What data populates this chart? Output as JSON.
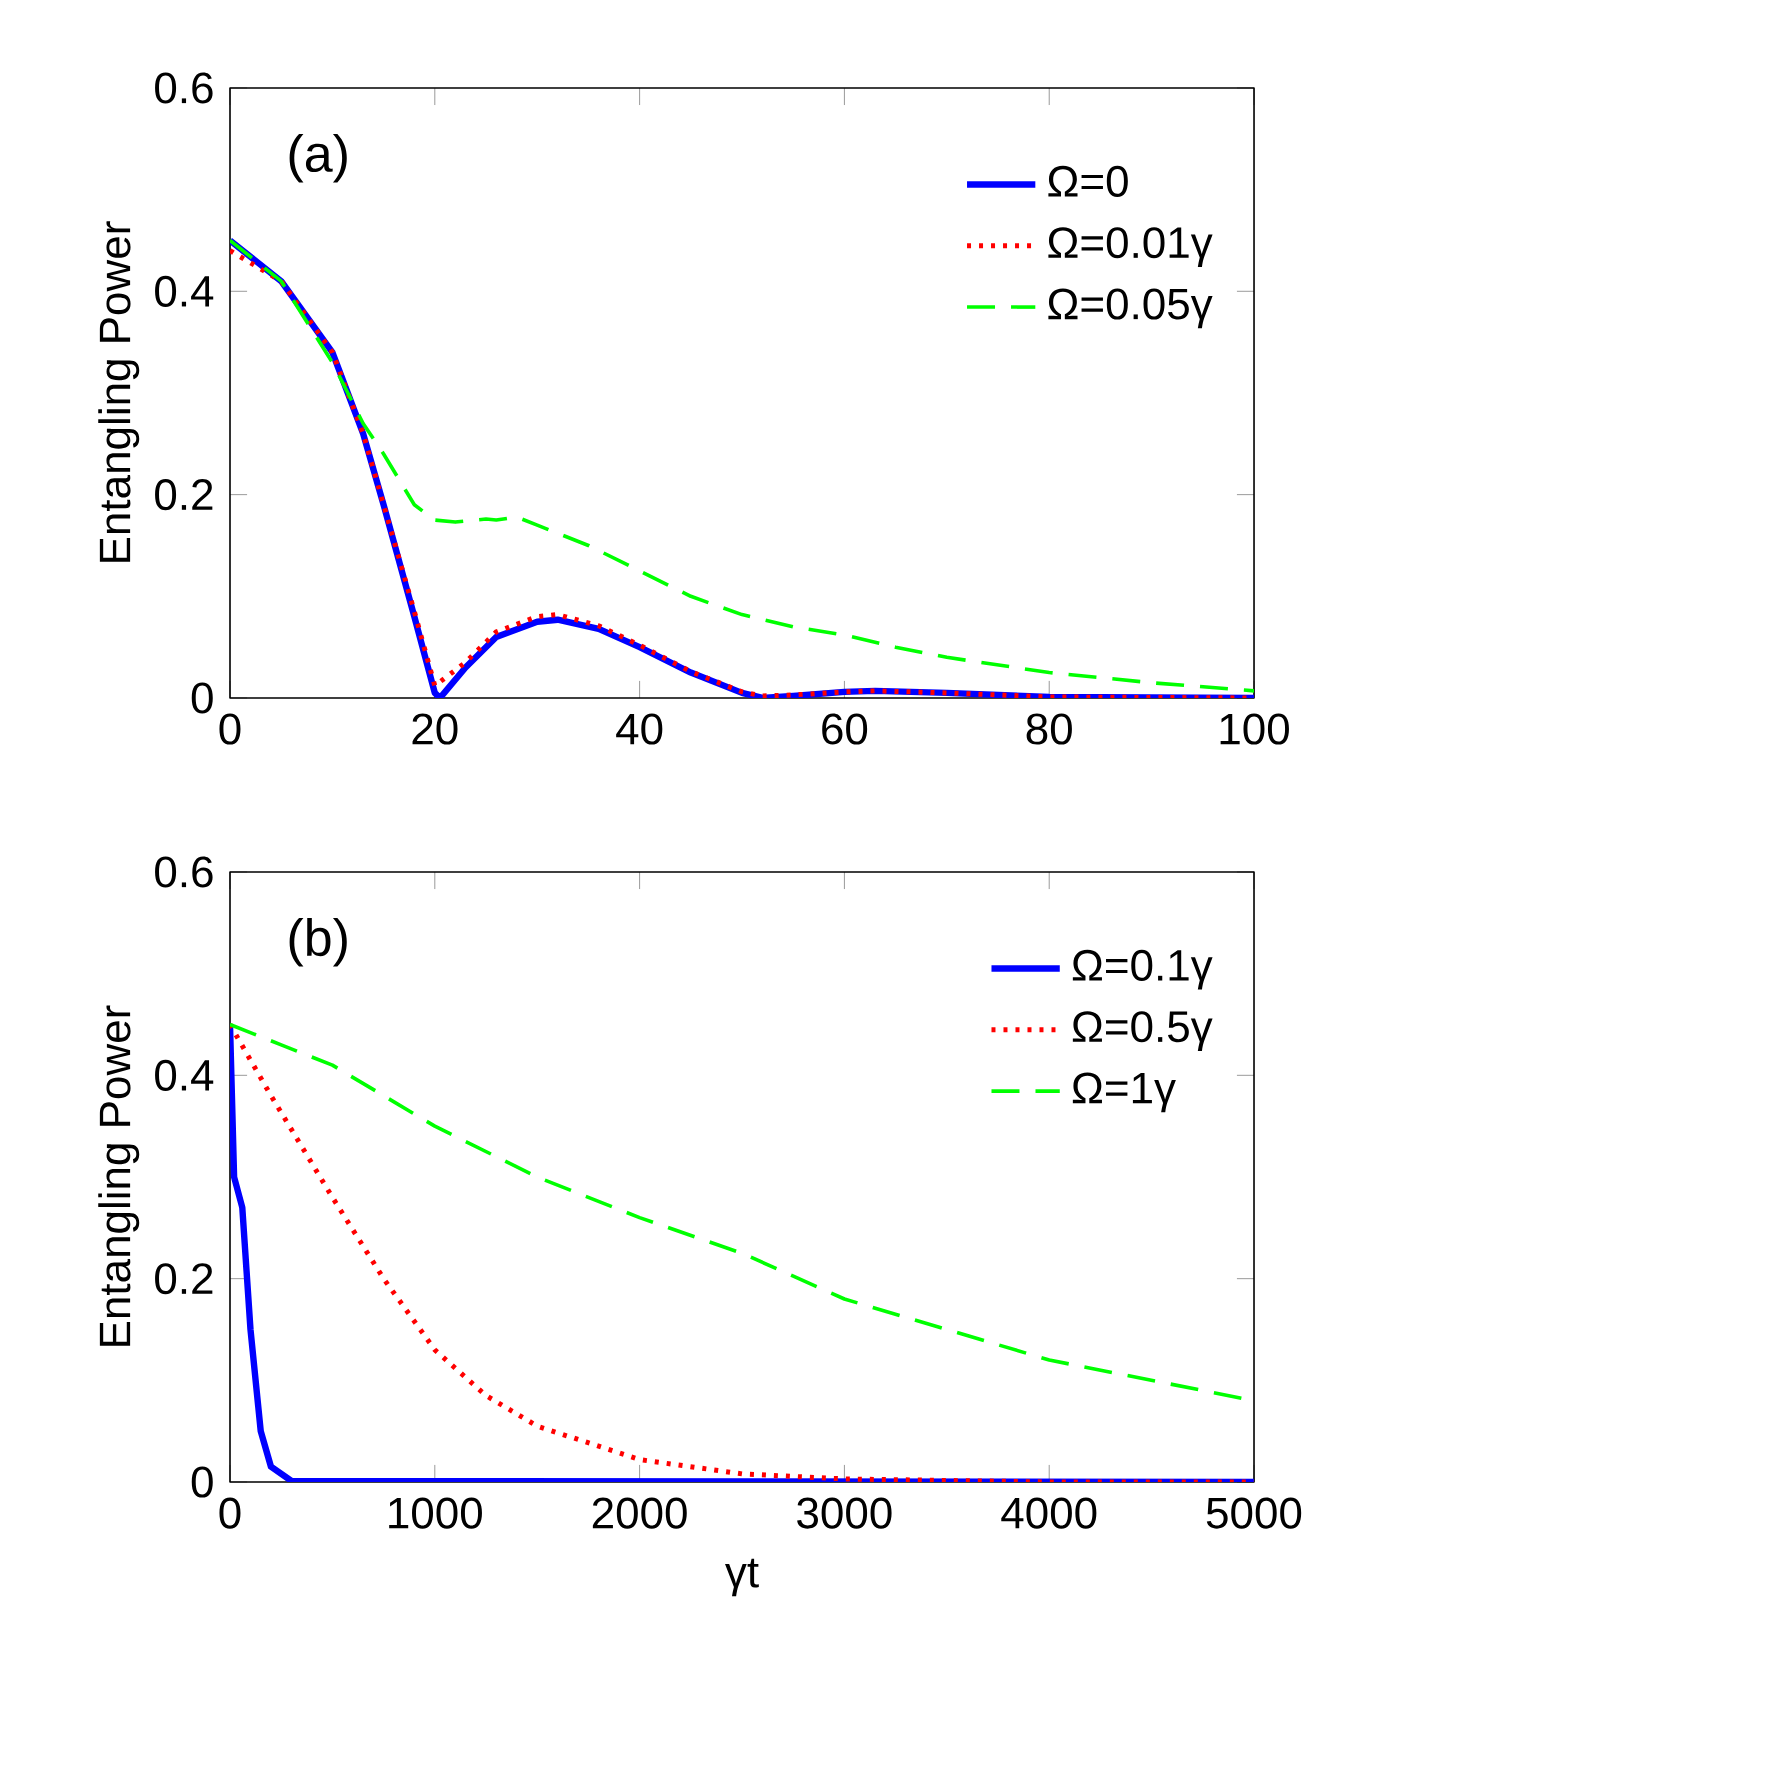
{
  "chart_data": [
    {
      "type": "line",
      "ylabel": "Entangling Power",
      "annotations": [
        "(a)"
      ],
      "xlim": [
        0,
        100
      ],
      "ylim": [
        0,
        0.6
      ],
      "xticks": [
        0,
        20,
        40,
        60,
        80,
        100
      ],
      "yticks": [
        0,
        0.2,
        0.4,
        0.6
      ],
      "legend": "top right",
      "series": [
        {
          "name": "Ω=0",
          "color": "#0000ff",
          "line_style": "solid",
          "x": [
            0,
            5,
            10,
            13,
            15,
            18,
            20,
            20.5,
            23,
            26,
            30,
            32,
            36,
            40,
            45,
            50,
            52,
            55,
            60,
            63,
            70,
            80,
            100
          ],
          "values": [
            0.45,
            0.41,
            0.34,
            0.26,
            0.19,
            0.08,
            0.005,
            0,
            0.03,
            0.06,
            0.075,
            0.077,
            0.068,
            0.05,
            0.025,
            0.005,
            0,
            0.002,
            0.006,
            0.007,
            0.005,
            0.001,
            0
          ]
        },
        {
          "name": "Ω=0.01γ",
          "color": "#ff0000",
          "line_style": "dotted",
          "x": [
            0,
            5,
            10,
            13,
            15,
            18,
            20,
            23,
            26,
            30,
            32,
            36,
            40,
            45,
            50,
            52,
            55,
            60,
            63,
            70,
            80,
            100
          ],
          "values": [
            0.44,
            0.41,
            0.34,
            0.26,
            0.19,
            0.085,
            0.012,
            0.035,
            0.065,
            0.08,
            0.082,
            0.071,
            0.052,
            0.026,
            0.006,
            0.002,
            0.003,
            0.006,
            0.007,
            0.005,
            0.001,
            0
          ]
        },
        {
          "name": "Ω=0.05γ",
          "color": "#00ff00",
          "line_style": "dashed",
          "x": [
            0,
            5,
            10,
            13,
            15,
            18,
            20,
            22,
            25,
            26,
            28,
            30,
            35,
            40,
            45,
            50,
            55,
            60,
            65,
            70,
            80,
            90,
            100
          ],
          "values": [
            0.45,
            0.41,
            0.33,
            0.27,
            0.24,
            0.19,
            0.175,
            0.173,
            0.176,
            0.175,
            0.178,
            0.17,
            0.15,
            0.125,
            0.1,
            0.082,
            0.07,
            0.062,
            0.05,
            0.04,
            0.025,
            0.015,
            0.007
          ]
        }
      ]
    },
    {
      "type": "line",
      "xlabel": "γt",
      "ylabel": "Entangling Power",
      "annotations": [
        "(b)"
      ],
      "xlim": [
        0,
        5000
      ],
      "ylim": [
        0,
        0.6
      ],
      "xticks": [
        0,
        1000,
        2000,
        3000,
        4000,
        5000
      ],
      "yticks": [
        0,
        0.2,
        0.4,
        0.6
      ],
      "legend": "top right",
      "series": [
        {
          "name": "Ω=0.1γ",
          "color": "#0000ff",
          "line_style": "solid",
          "x": [
            0,
            20,
            60,
            100,
            150,
            200,
            300,
            5000
          ],
          "values": [
            0.45,
            0.3,
            0.27,
            0.15,
            0.05,
            0.015,
            0.001,
            0
          ]
        },
        {
          "name": "Ω=0.5γ",
          "color": "#ff0000",
          "line_style": "dotted",
          "x": [
            0,
            200,
            500,
            750,
            1000,
            1250,
            1500,
            2000,
            2500,
            3000,
            4000,
            5000
          ],
          "values": [
            0.45,
            0.38,
            0.28,
            0.2,
            0.13,
            0.085,
            0.055,
            0.022,
            0.008,
            0.003,
            0,
            0
          ]
        },
        {
          "name": "Ω=1γ",
          "color": "#00ff00",
          "line_style": "dashed",
          "x": [
            0,
            250,
            500,
            1000,
            1500,
            2000,
            2500,
            3000,
            3500,
            4000,
            4500,
            5000
          ],
          "values": [
            0.45,
            0.43,
            0.41,
            0.35,
            0.3,
            0.26,
            0.225,
            0.18,
            0.15,
            0.12,
            0.1,
            0.08
          ]
        }
      ]
    }
  ]
}
